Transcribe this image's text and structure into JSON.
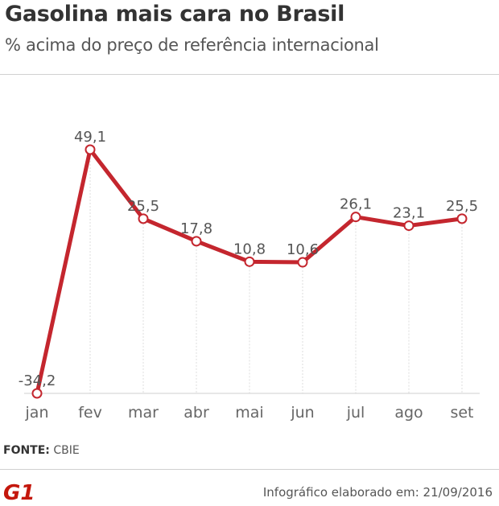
{
  "header": {
    "title": "Gasolina mais cara no Brasil",
    "subtitle": "% acima do preço de referência internacional"
  },
  "chart_data": {
    "type": "line",
    "title": "Gasolina mais cara no Brasil",
    "subtitle": "% acima do preço de referência internacional",
    "categories": [
      "jan",
      "fev",
      "mar",
      "abr",
      "mai",
      "jun",
      "jul",
      "ago",
      "set"
    ],
    "values": [
      -34.2,
      49.1,
      25.5,
      17.8,
      10.8,
      10.6,
      26.1,
      23.1,
      25.5
    ],
    "labels": [
      "-34,2",
      "49,1",
      "25,5",
      "17,8",
      "10,8",
      "10,6",
      "26,1",
      "23,1",
      "25,5"
    ],
    "xlabel": "",
    "ylabel": "",
    "ylim": [
      -34.2,
      49.1
    ],
    "line_color": "#c4262e",
    "grid": "vertical dotted"
  },
  "footer": {
    "source_label": "FONTE:",
    "source_value": "CBIE",
    "logo_text": "G1",
    "credit": "Infográfico elaborado em: 21/09/2016"
  },
  "colors": {
    "accent": "#c4262e",
    "logo": "#c4170c"
  }
}
